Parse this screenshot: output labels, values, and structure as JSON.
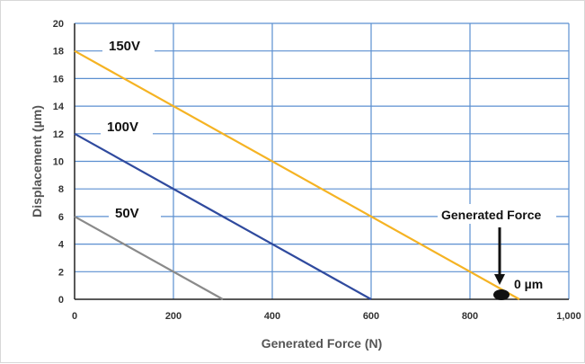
{
  "chart_data": {
    "type": "line",
    "title": "",
    "xlabel": "Generated Force (N)",
    "ylabel": "Displacement (µm)",
    "xlim": [
      0,
      1000
    ],
    "ylim": [
      0,
      20
    ],
    "x_ticks": [
      "0",
      "200",
      "400",
      "600",
      "800",
      "1,000"
    ],
    "y_ticks": [
      "0",
      "2",
      "4",
      "6",
      "8",
      "10",
      "12",
      "14",
      "16",
      "18",
      "20"
    ],
    "grid": true,
    "series": [
      {
        "name": "150V",
        "color": "#F5B323",
        "x": [
          0,
          900
        ],
        "y": [
          18,
          0
        ]
      },
      {
        "name": "100V",
        "color": "#2F4A9E",
        "x": [
          0,
          600
        ],
        "y": [
          12,
          0
        ]
      },
      {
        "name": "50V",
        "color": "#8A8A8A",
        "x": [
          0,
          300
        ],
        "y": [
          6,
          0
        ]
      }
    ],
    "annotations": {
      "generated_force_label": "Generated Force",
      "zero_label": "0 µm",
      "marker_point": {
        "x": 900,
        "y": 0
      }
    }
  },
  "colors": {
    "grid": "#5B8FD0",
    "axis": "#222222",
    "marker": "#111111"
  }
}
